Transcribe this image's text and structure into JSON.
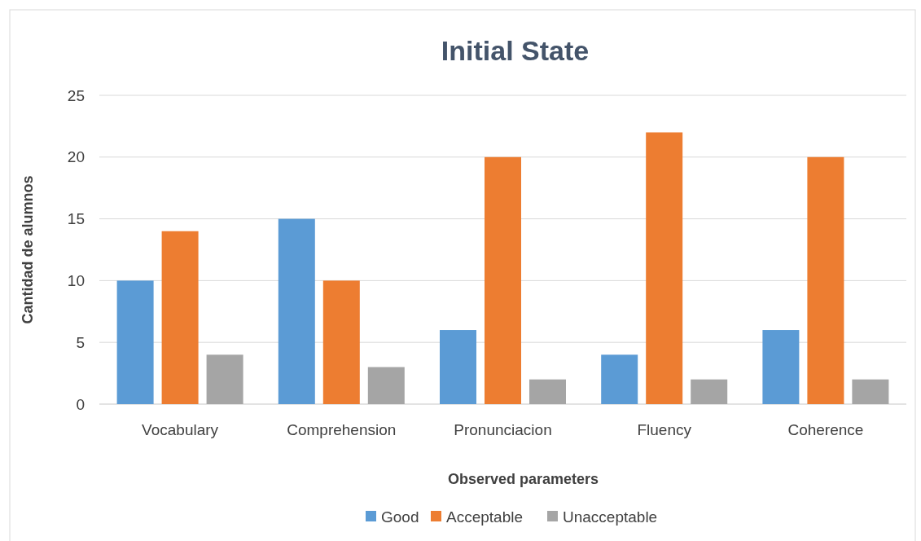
{
  "chart_data": {
    "type": "bar",
    "title": "Initial State",
    "xlabel": "Observed parameters",
    "ylabel": "Cantidad de alumnos",
    "categories": [
      "Vocabulary",
      "Comprehension",
      "Pronunciacion",
      "Fluency",
      "Coherence"
    ],
    "series": [
      {
        "name": "Good",
        "color": "#5b9bd5",
        "values": [
          10,
          15,
          6,
          4,
          6
        ]
      },
      {
        "name": "Acceptable",
        "color": "#ed7d31",
        "values": [
          14,
          10,
          20,
          22,
          20
        ]
      },
      {
        "name": "Unacceptable",
        "color": "#a5a5a5",
        "values": [
          4,
          3,
          2,
          2,
          2
        ]
      }
    ],
    "ylim": [
      0,
      25
    ],
    "yticks": [
      0,
      5,
      10,
      15,
      20,
      25
    ],
    "grid": "y",
    "legend": "bottom"
  }
}
